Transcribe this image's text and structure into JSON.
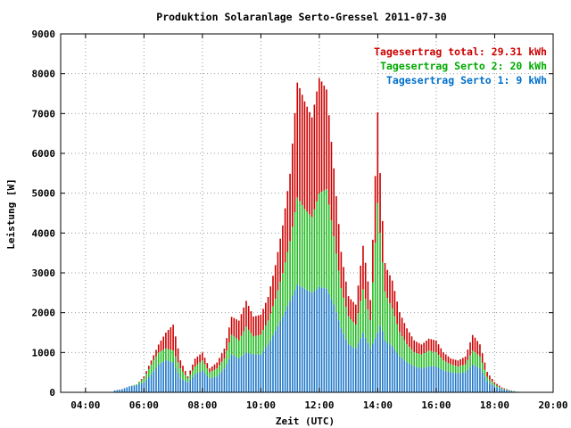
{
  "chart_data": {
    "type": "bar",
    "title": "Produktion Solaranlage Serto-Gressel 2011-07-30",
    "xlabel": "Zeit (UTC)",
    "ylabel": "Leistung [W]",
    "xlim": [
      3.15,
      20.0
    ],
    "ylim": [
      0,
      9000
    ],
    "xticks": [
      4,
      6,
      8,
      10,
      12,
      14,
      16,
      18,
      20
    ],
    "xtick_labels": [
      "04:00",
      "06:00",
      "08:00",
      "10:00",
      "12:00",
      "14:00",
      "16:00",
      "18:00",
      "20:00"
    ],
    "yticks": [
      0,
      1000,
      2000,
      3000,
      4000,
      5000,
      6000,
      7000,
      8000,
      9000
    ],
    "ytick_labels": [
      "0",
      "1000",
      "2000",
      "3000",
      "4000",
      "5000",
      "6000",
      "7000",
      "8000",
      "9000"
    ],
    "grid": true,
    "stacked": true,
    "legend_position": "top-right",
    "legend": [
      {
        "text": "Tagesertrag total: 29.31 kWh",
        "color": "#cc0000"
      },
      {
        "text": "Tagesertrag Serto 2: 20 kWh",
        "color": "#00aa00"
      },
      {
        "text": "Tagesertrag Serto 1: 9 kWh",
        "color": "#0070cc"
      }
    ],
    "series_colors": {
      "serto1": "#1f78c8",
      "serto2": "#22bb22",
      "total": "#cc0000"
    },
    "bar_interval_hours": 0.0833,
    "x": [
      5.0,
      5.25,
      5.5,
      5.75,
      6.0,
      6.25,
      6.5,
      6.75,
      7.0,
      7.25,
      7.5,
      7.75,
      8.0,
      8.25,
      8.5,
      8.75,
      9.0,
      9.25,
      9.5,
      9.75,
      10.0,
      10.25,
      10.5,
      10.75,
      11.0,
      11.25,
      11.5,
      11.75,
      12.0,
      12.25,
      12.5,
      12.75,
      13.0,
      13.25,
      13.5,
      13.75,
      14.0,
      14.1,
      14.25,
      14.5,
      14.75,
      15.0,
      15.25,
      15.5,
      15.75,
      16.0,
      16.25,
      16.5,
      16.75,
      17.0,
      17.25,
      17.5,
      17.75,
      18.0,
      18.25,
      18.5,
      18.75,
      19.0
    ],
    "total": [
      50,
      80,
      150,
      200,
      400,
      800,
      1200,
      1500,
      1700,
      800,
      400,
      850,
      1000,
      600,
      750,
      1100,
      1900,
      1800,
      2300,
      1900,
      1950,
      2400,
      3200,
      4200,
      5500,
      7800,
      7300,
      6900,
      7900,
      7600,
      5600,
      3500,
      2400,
      2200,
      3700,
      2300,
      7100,
      5100,
      3200,
      2800,
      2000,
      1600,
      1300,
      1200,
      1350,
      1300,
      1000,
      850,
      800,
      900,
      1450,
      1200,
      500,
      250,
      120,
      60,
      20,
      0
    ],
    "serto2": [
      50,
      80,
      150,
      200,
      350,
      700,
      1000,
      1100,
      1050,
      600,
      350,
      650,
      800,
      500,
      600,
      850,
      1450,
      1300,
      1650,
      1400,
      1450,
      1800,
      2350,
      3000,
      3800,
      4900,
      4600,
      4400,
      5000,
      5100,
      3900,
      2600,
      1900,
      1700,
      2600,
      1800,
      4800,
      3800,
      2500,
      2100,
      1500,
      1200,
      1000,
      950,
      1050,
      1000,
      800,
      700,
      650,
      700,
      1050,
      900,
      380,
      200,
      100,
      50,
      20,
      0
    ],
    "serto1": [
      50,
      80,
      150,
      180,
      250,
      450,
      700,
      800,
      750,
      350,
      250,
      450,
      550,
      350,
      400,
      600,
      950,
      850,
      1000,
      950,
      950,
      1200,
      1550,
      1900,
      2300,
      2700,
      2600,
      2500,
      2650,
      2600,
      2200,
      1600,
      1200,
      1100,
      1500,
      1100,
      1500,
      1700,
      1300,
      1150,
      900,
      750,
      650,
      600,
      650,
      650,
      550,
      500,
      480,
      500,
      700,
      600,
      280,
      150,
      80,
      40,
      15,
      0
    ]
  }
}
